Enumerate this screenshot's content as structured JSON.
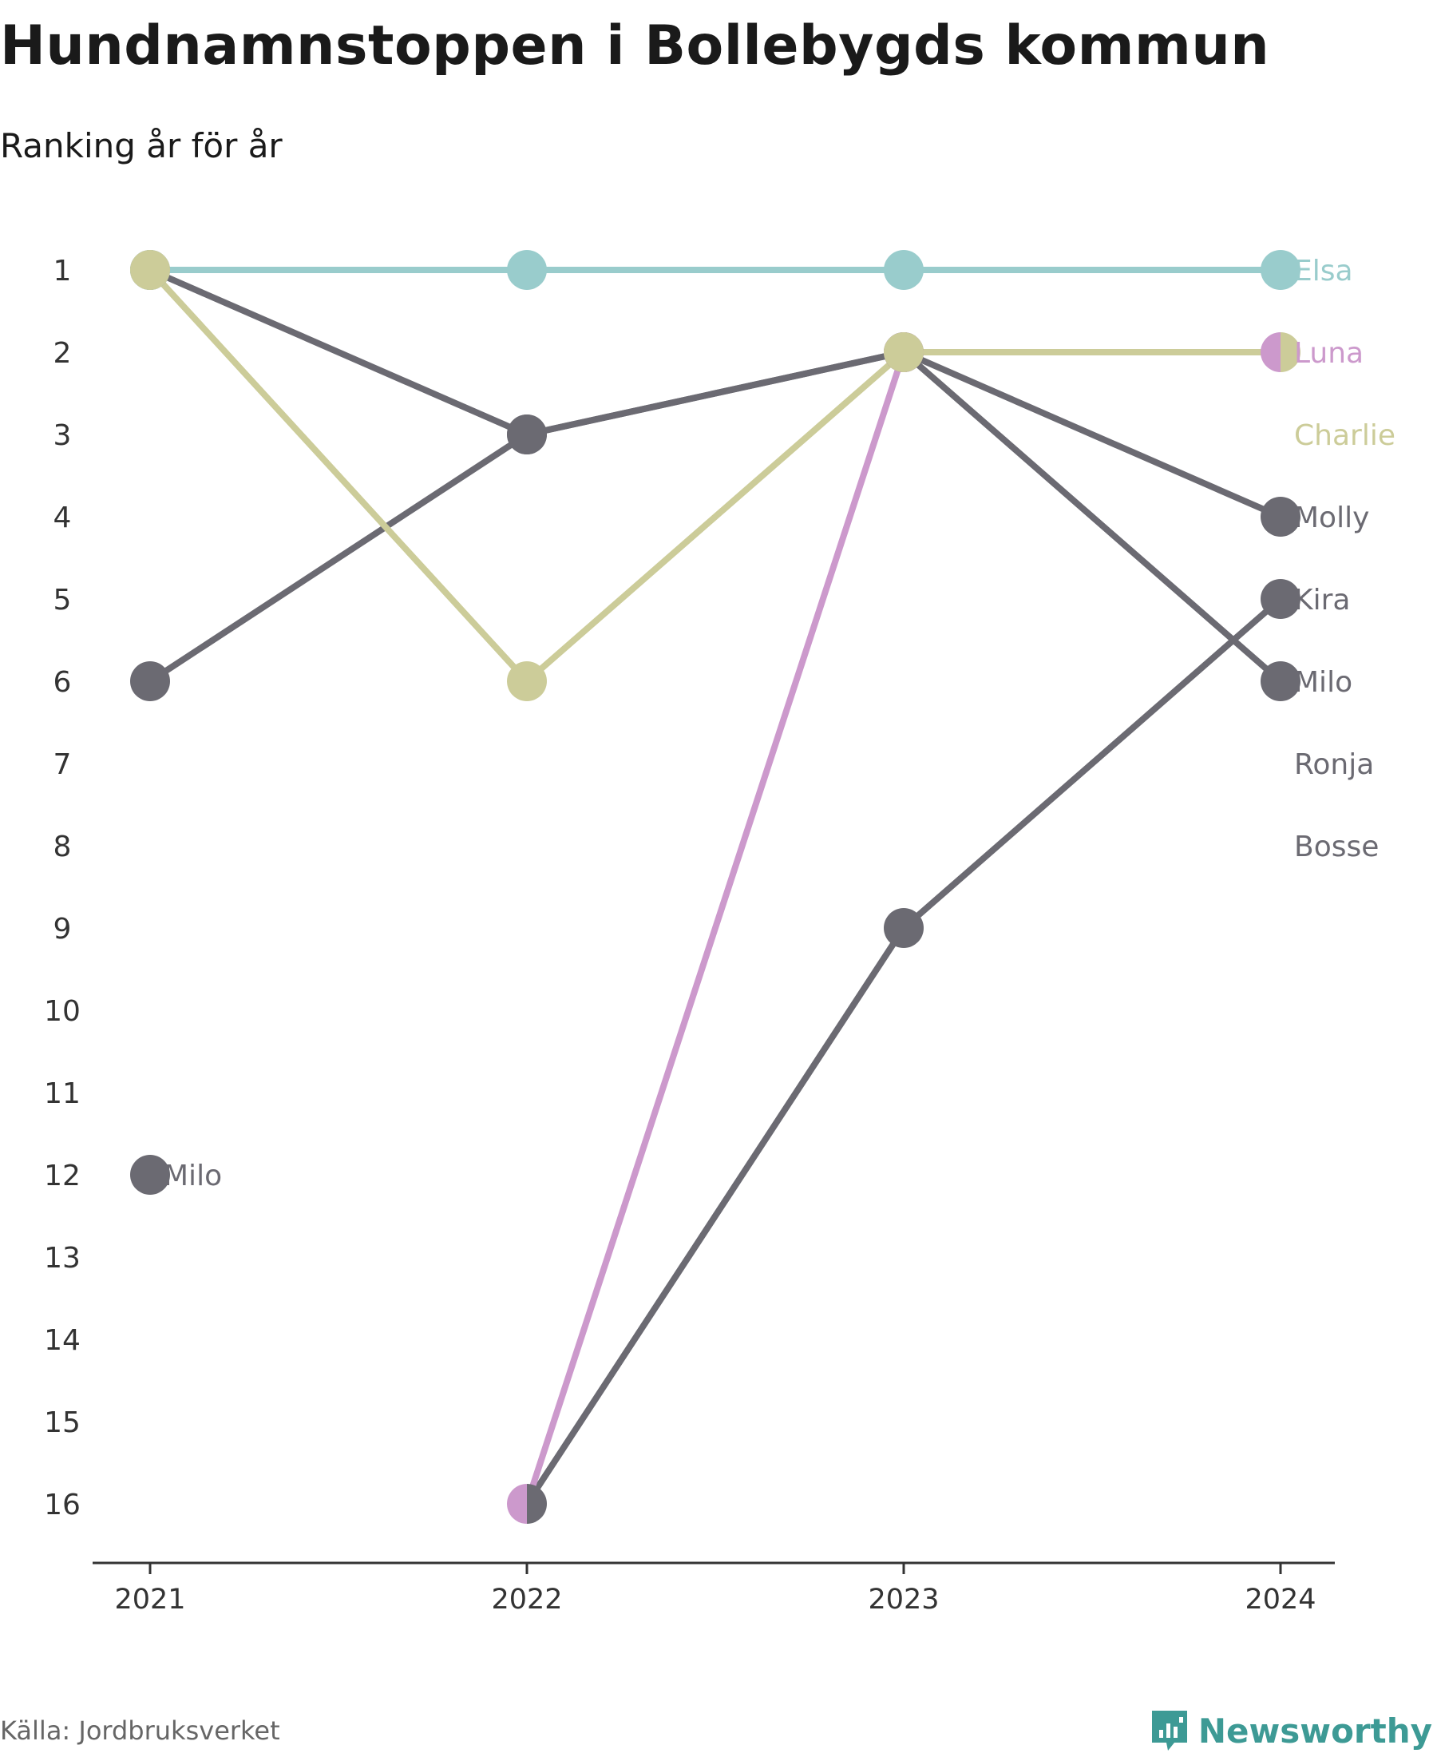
{
  "header": {
    "title": "Hundnamnstoppen i Bollebygds kommun",
    "subtitle": "Ranking år för år"
  },
  "footer": {
    "source": "Källa: Jordbruksverket",
    "brand": "Newsworthy"
  },
  "colors": {
    "elsa": "#99cccc",
    "luna": "#cc99cc",
    "charlie": "#cccc99",
    "gray": "#6b6a72",
    "axis": "#333333",
    "tick_text": "#333333",
    "brand": "#3d9a95"
  },
  "chart_data": {
    "type": "line",
    "subtype": "bump",
    "x": [
      "2021",
      "2022",
      "2023",
      "2024"
    ],
    "y_ticks": [
      "1",
      "2",
      "3",
      "4",
      "5",
      "6",
      "7",
      "8",
      "9",
      "10",
      "11",
      "12",
      "13",
      "14",
      "15",
      "16"
    ],
    "ylim": [
      1,
      16
    ],
    "y_inverted": true,
    "grid": false,
    "series": [
      {
        "name": "Elsa",
        "color": "#99cccc",
        "values": [
          1,
          1,
          1,
          1
        ]
      },
      {
        "name": "Luna",
        "color": "#cc99cc",
        "values": [
          null,
          16,
          2,
          2
        ]
      },
      {
        "name": "Charlie",
        "color": "#cccc99",
        "values": [
          1,
          6,
          2,
          2
        ]
      },
      {
        "name": "Molly",
        "color": "#6b6a72",
        "values": [
          1,
          3,
          2,
          4
        ]
      },
      {
        "name": "Kira",
        "color": "#6b6a72",
        "values": [
          null,
          16,
          9,
          5
        ]
      },
      {
        "name": "Milo",
        "color": "#6b6a72",
        "values": [
          6,
          3,
          2,
          6
        ]
      },
      {
        "name": "Milo",
        "color": "#6b6a72",
        "values": [
          12,
          null,
          null,
          null
        ]
      },
      {
        "name": "Ronja",
        "color": "#6b6a72",
        "values": [
          null,
          null,
          null,
          null
        ]
      },
      {
        "name": "Bosse",
        "color": "#6b6a72",
        "values": [
          null,
          null,
          null,
          null
        ]
      }
    ],
    "end_labels": [
      {
        "text": "Elsa",
        "rank": 1,
        "color": "#99cccc"
      },
      {
        "text": "Luna",
        "rank": 2,
        "color": "#cc99cc"
      },
      {
        "text": "Charlie",
        "rank": 3,
        "color": "#cccc99"
      },
      {
        "text": "Molly",
        "rank": 4,
        "color": "#6b6a72"
      },
      {
        "text": "Kira",
        "rank": 5,
        "color": "#6b6a72"
      },
      {
        "text": "Milo",
        "rank": 6,
        "color": "#6b6a72"
      },
      {
        "text": "Ronja",
        "rank": 7,
        "color": "#6b6a72"
      },
      {
        "text": "Bosse",
        "rank": 8,
        "color": "#6b6a72"
      }
    ],
    "inline_labels": [
      {
        "text": "Milo",
        "year": "2021",
        "rank": 12,
        "color": "#6b6a72"
      }
    ],
    "split_markers": [
      {
        "year": "2024",
        "rank": 2,
        "left_color": "#cc99cc",
        "right_color": "#cccc99"
      },
      {
        "year": "2022",
        "rank": 16,
        "left_color": "#cc99cc",
        "right_color": "#6b6a72"
      }
    ]
  }
}
